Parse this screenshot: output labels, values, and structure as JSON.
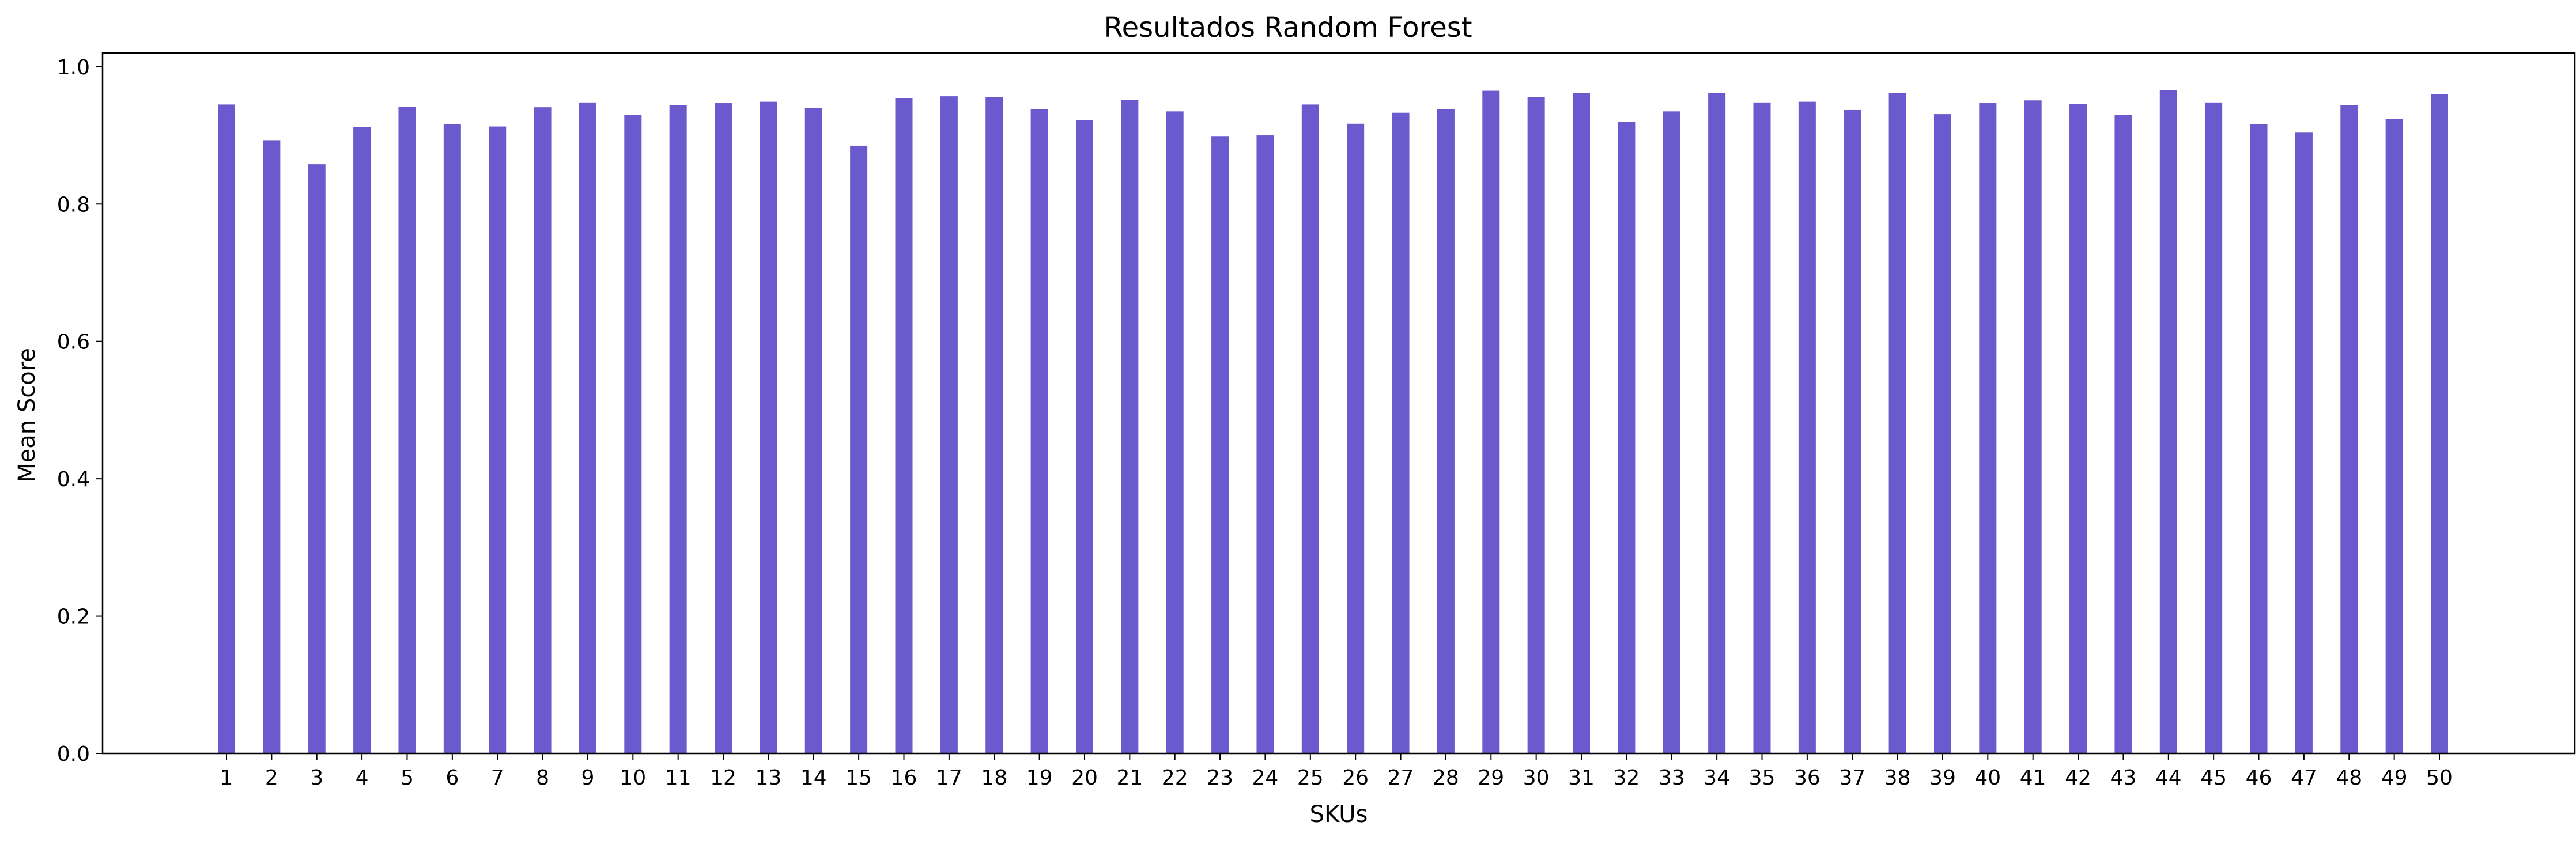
{
  "chart_data": {
    "type": "bar",
    "title": "Resultados Random Forest",
    "xlabel": "SKUs",
    "ylabel": "Mean Score",
    "ylim": [
      0.0,
      1.02
    ],
    "yticks": [
      "0.0",
      "0.2",
      "0.4",
      "0.6",
      "0.8",
      "1.0"
    ],
    "ytick_values": [
      0.0,
      0.2,
      0.4,
      0.6,
      0.8,
      1.0
    ],
    "grid": false,
    "bar_color": "#6a5acd",
    "categories": [
      "1",
      "2",
      "3",
      "4",
      "5",
      "6",
      "7",
      "8",
      "9",
      "10",
      "11",
      "12",
      "13",
      "14",
      "15",
      "16",
      "17",
      "18",
      "19",
      "20",
      "21",
      "22",
      "23",
      "24",
      "25",
      "26",
      "27",
      "28",
      "29",
      "30",
      "31",
      "32",
      "33",
      "34",
      "35",
      "36",
      "37",
      "38",
      "39",
      "40",
      "41",
      "42",
      "43",
      "44",
      "45",
      "46",
      "47",
      "48",
      "49",
      "50"
    ],
    "values": [
      0.945,
      0.893,
      0.858,
      0.912,
      0.942,
      0.916,
      0.913,
      0.941,
      0.948,
      0.93,
      0.944,
      0.947,
      0.949,
      0.94,
      0.885,
      0.954,
      0.957,
      0.956,
      0.938,
      0.922,
      0.952,
      0.935,
      0.899,
      0.9,
      0.945,
      0.917,
      0.933,
      0.938,
      0.965,
      0.956,
      0.962,
      0.92,
      0.935,
      0.962,
      0.948,
      0.949,
      0.937,
      0.962,
      0.931,
      0.947,
      0.951,
      0.946,
      0.93,
      0.966,
      0.948,
      0.916,
      0.904,
      0.944,
      0.924,
      0.96
    ]
  }
}
